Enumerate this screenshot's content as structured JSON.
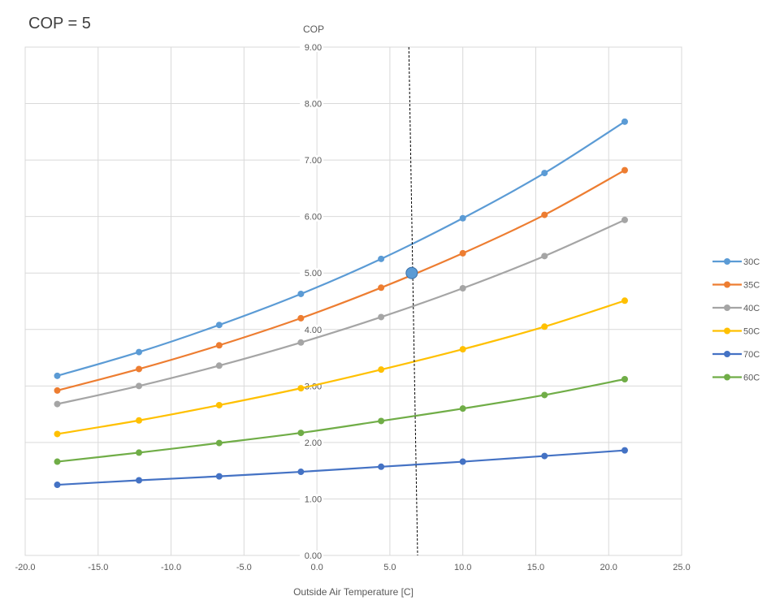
{
  "chart_data": {
    "type": "line",
    "title": "COP = 5",
    "xlabel": "Outside Air Temperature  [C]",
    "ylabel": "COP",
    "xlim": [
      -20,
      25
    ],
    "ylim": [
      0,
      9
    ],
    "x_ticks": [
      "-20.0",
      "-15.0",
      "-10.0",
      "-5.0",
      "0.0",
      "5.0",
      "10.0",
      "15.0",
      "20.0",
      "25.0"
    ],
    "y_ticks": [
      "0.00",
      "1.00",
      "2.00",
      "3.00",
      "4.00",
      "5.00",
      "6.00",
      "7.00",
      "8.00",
      "9.00"
    ],
    "grid": true,
    "legend_position": "right",
    "x": [
      -17.8,
      -12.2,
      -6.7,
      -1.1,
      4.4,
      10.0,
      15.6,
      21.1
    ],
    "series": [
      {
        "name": "30C",
        "color": "#5B9BD5",
        "values": [
          3.18,
          3.6,
          4.08,
          4.63,
          5.25,
          5.97,
          6.77,
          7.68
        ]
      },
      {
        "name": "35C",
        "color": "#ED7D31",
        "values": [
          2.92,
          3.3,
          3.72,
          4.2,
          4.74,
          5.35,
          6.03,
          6.82
        ]
      },
      {
        "name": "40C",
        "color": "#A5A5A5",
        "values": [
          2.68,
          3.0,
          3.36,
          3.77,
          4.22,
          4.73,
          5.3,
          5.94
        ]
      },
      {
        "name": "50C",
        "color": "#FFC000",
        "values": [
          2.15,
          2.39,
          2.66,
          2.96,
          3.29,
          3.65,
          4.05,
          4.51
        ]
      },
      {
        "name": "70C",
        "color": "#4472C4",
        "values": [
          1.25,
          1.33,
          1.4,
          1.48,
          1.57,
          1.66,
          1.76,
          1.86
        ]
      },
      {
        "name": "60C",
        "color": "#70AD47",
        "values": [
          1.66,
          1.82,
          1.99,
          2.17,
          2.38,
          2.6,
          2.84,
          3.12
        ]
      }
    ],
    "annotations": [
      {
        "type": "marker",
        "x": 6.5,
        "y": 5.0,
        "color": "#5B9BD5"
      },
      {
        "type": "dashed_line",
        "x_top": 6.3,
        "x_bottom": 6.9,
        "color": "#000000"
      }
    ]
  }
}
